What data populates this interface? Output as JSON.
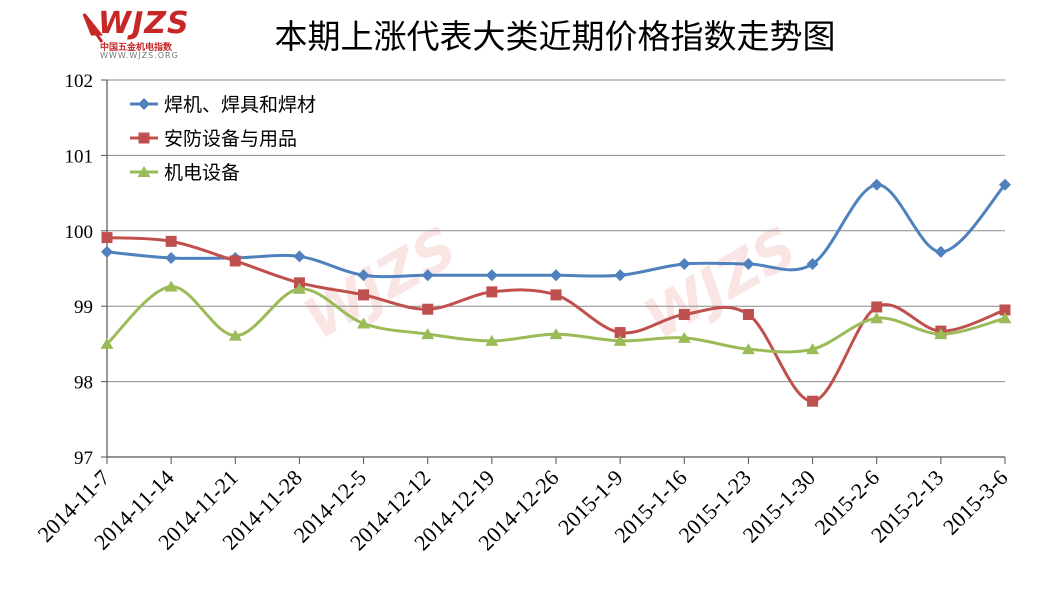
{
  "header": {
    "title": "本期上涨代表大类近期价格指数走势图",
    "logo_text": "WJZS",
    "logo_subtitle": "中国五金机电指数",
    "logo_url": "WWW.WJZS.ORG"
  },
  "chart_data": {
    "type": "line",
    "title": "本期上涨代表大类近期价格指数走势图",
    "xlabel": "",
    "ylabel": "",
    "ylim": [
      97,
      102
    ],
    "yticks": [
      "97",
      "98",
      "99",
      "100",
      "101",
      "102"
    ],
    "grid": true,
    "legend_position": "top-left",
    "categories": [
      "2014-11-7",
      "2014-11-14",
      "2014-11-21",
      "2014-11-28",
      "2014-12-5",
      "2014-12-12",
      "2014-12-19",
      "2014-12-26",
      "2015-1-9",
      "2015-1-16",
      "2015-1-23",
      "2015-1-30",
      "2015-2-6",
      "2015-2-13",
      "2015-3-6"
    ],
    "series": [
      {
        "name": "焊机、焊具和焊材",
        "color": "#4f81bd",
        "marker": "diamond",
        "values": [
          99.72,
          99.64,
          99.64,
          99.66,
          99.41,
          99.41,
          99.41,
          99.41,
          99.41,
          99.56,
          99.56,
          99.56,
          100.61,
          99.72,
          100.61
        ]
      },
      {
        "name": "安防设备与用品",
        "color": "#c0504d",
        "marker": "square",
        "values": [
          99.91,
          99.86,
          99.6,
          99.31,
          99.15,
          98.96,
          99.19,
          99.15,
          98.65,
          98.89,
          98.89,
          97.74,
          98.99,
          98.67,
          98.95
        ]
      },
      {
        "name": "机电设备",
        "color": "#9bbb59",
        "marker": "triangle",
        "values": [
          98.5,
          99.26,
          98.61,
          99.23,
          98.77,
          98.63,
          98.54,
          98.63,
          98.54,
          98.58,
          98.43,
          98.43,
          98.84,
          98.63,
          98.84
        ]
      }
    ]
  }
}
